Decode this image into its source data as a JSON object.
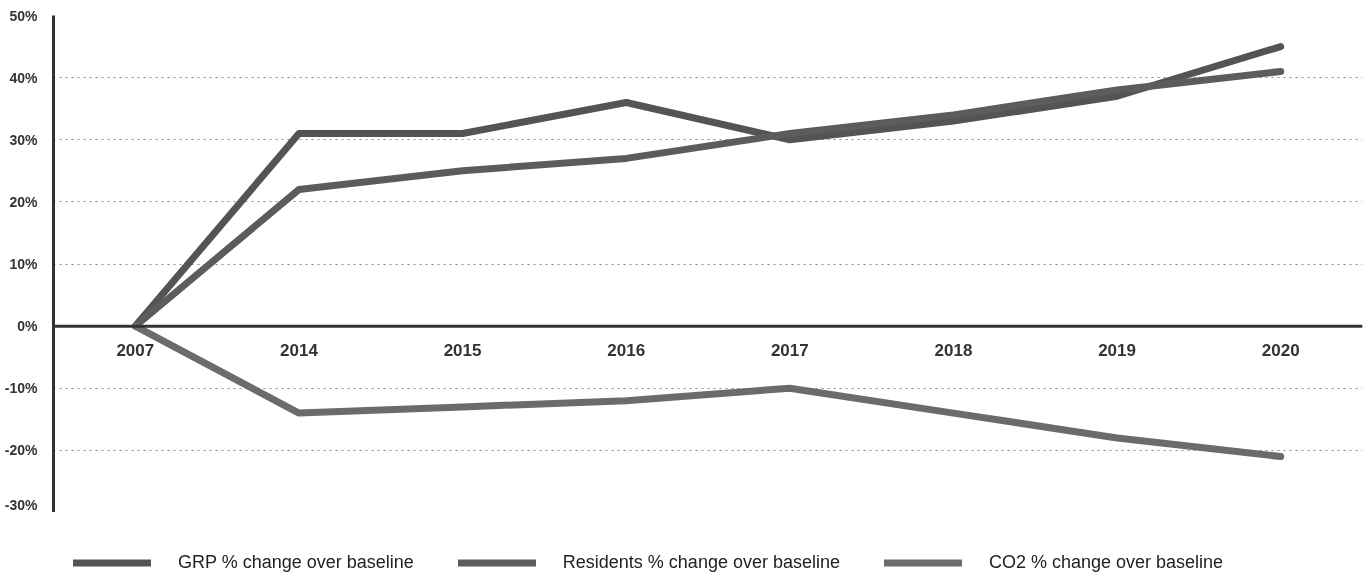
{
  "chart_data": {
    "type": "line",
    "categories": [
      "2007",
      "2014",
      "2015",
      "2016",
      "2017",
      "2018",
      "2019",
      "2020"
    ],
    "series": [
      {
        "name": "GRP % change over baseline",
        "color": "#545454",
        "values": [
          0,
          31,
          31,
          36,
          30,
          33,
          37,
          45
        ]
      },
      {
        "name": "Residents % change over baseline",
        "color": "#5c5c5c",
        "values": [
          0,
          22,
          25,
          27,
          31,
          34,
          38,
          41
        ]
      },
      {
        "name": "CO2 % change over baseline",
        "color": "#6b6b6b",
        "values": [
          0,
          -14,
          -13,
          -12,
          -10,
          -14,
          -18,
          -21
        ]
      }
    ],
    "ylim": [
      -30,
      50
    ],
    "yticks": [
      {
        "value": -30,
        "label": "-30%"
      },
      {
        "value": -20,
        "label": "-20%"
      },
      {
        "value": -10,
        "label": "-10%"
      },
      {
        "value": 0,
        "label": "0%"
      },
      {
        "value": 10,
        "label": "10%"
      },
      {
        "value": 20,
        "label": "20%"
      },
      {
        "value": 30,
        "label": "30%"
      },
      {
        "value": 40,
        "label": "40%"
      },
      {
        "value": 50,
        "label": "50%"
      }
    ],
    "grid": "y",
    "legend": "bottom",
    "line_style": "solid"
  }
}
